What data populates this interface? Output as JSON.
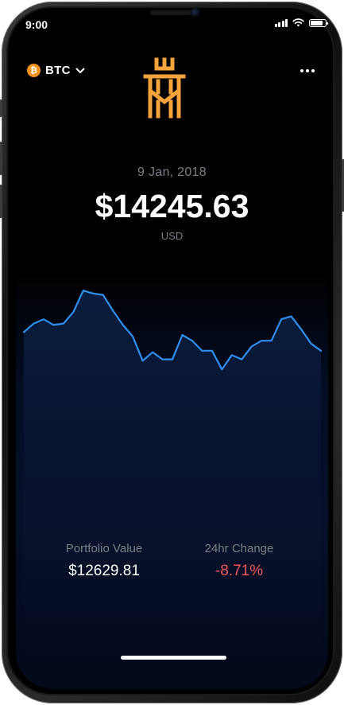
{
  "status_bar": {
    "time": "9:00",
    "signal_bars": 4,
    "battery_level": 0.85
  },
  "header": {
    "coin": {
      "symbol": "BTC",
      "icon_glyph": "₿",
      "icon_color": "#f7931a"
    },
    "logo_color": "#f5a33c",
    "more_icon": "more-horizontal-icon"
  },
  "price_section": {
    "date": "9 Jan, 2018",
    "price": "$14245.63",
    "currency": "USD"
  },
  "chart_data": {
    "type": "area",
    "x": [
      0,
      1,
      2,
      3,
      4,
      5,
      6,
      7,
      8,
      9,
      10,
      11,
      12,
      13,
      14,
      15,
      16,
      17,
      18,
      19,
      20,
      21,
      22,
      23,
      24,
      25,
      26,
      27,
      28,
      29,
      30
    ],
    "values": [
      57,
      63,
      66,
      62,
      63,
      71,
      86,
      84,
      83,
      72,
      62,
      54,
      37,
      43,
      38,
      38,
      55,
      51,
      44,
      44,
      31,
      41,
      38,
      47,
      51,
      51,
      66,
      68,
      59,
      49,
      44
    ],
    "line_color": "#2f8ff0",
    "fill_color": "#0a1d3f",
    "ylim": [
      0,
      100
    ]
  },
  "stats": {
    "portfolio": {
      "label": "Portfolio Value",
      "value": "$12629.81"
    },
    "change": {
      "label": "24hr Change",
      "value": "-8.71%",
      "color": "#f0555a"
    }
  }
}
